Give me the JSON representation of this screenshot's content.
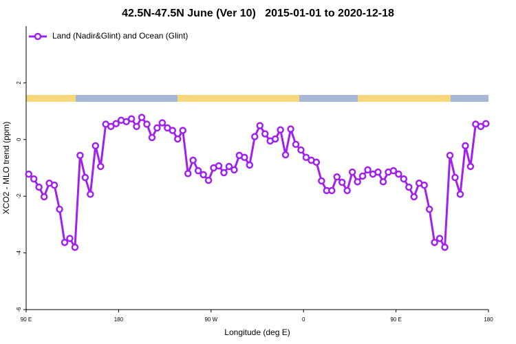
{
  "chart_data": {
    "type": "line",
    "title": "42.5N-47.5N June (Ver 10)   2015-01-01 to 2020-12-18",
    "x_label": "Longitude (deg E)",
    "y_label": "XCO2 - MLO trend (ppm)",
    "legend": "top-left",
    "xlim": [
      90,
      540
    ],
    "xticks": [
      {
        "value": 90,
        "label": "90 E"
      },
      180,
      {
        "value": 270,
        "label": "90 W"
      },
      {
        "value": 360,
        "label": "0"
      },
      {
        "value": 450,
        "label": "90 E"
      },
      {
        "value": 540,
        "label": "180"
      }
    ],
    "ylim": [
      -6,
      4
    ],
    "yticks": [
      -6,
      -4,
      -2,
      0,
      2
    ],
    "x": [
      92.5,
      97.5,
      102.5,
      107.5,
      112.5,
      117.5,
      122.5,
      127.5,
      132.5,
      137.5,
      142.5,
      147.5,
      152.5,
      157.5,
      162.5,
      167.5,
      172.5,
      177.5,
      182.5,
      187.5,
      192.5,
      197.5,
      202.5,
      207.5,
      212.5,
      217.5,
      222.5,
      227.5,
      232.5,
      237.5,
      242.5,
      247.5,
      252.5,
      257.5,
      262.5,
      267.5,
      272.5,
      277.5,
      282.5,
      287.5,
      292.5,
      297.5,
      302.5,
      307.5,
      312.5,
      317.5,
      322.5,
      327.5,
      332.5,
      337.5,
      342.5,
      347.5,
      352.5,
      357.5,
      362.5,
      367.5,
      372.5,
      377.5,
      382.5,
      387.5,
      392.5,
      397.5,
      402.5,
      407.5,
      412.5,
      417.5,
      422.5,
      427.5,
      432.5,
      437.5,
      442.5,
      447.5,
      452.5,
      457.5,
      462.5,
      467.5,
      472.5,
      477.5,
      482.5,
      487.5,
      492.5,
      497.5,
      502.5,
      507.5,
      512.5,
      517.5,
      522.5,
      527.5,
      532.5,
      537.5
    ],
    "series": [
      {
        "name": "Land (Nadir&Glint) and Ocean (Glint)",
        "color": "#a020f0",
        "values": [
          -1.22,
          -1.39,
          -1.68,
          -2.02,
          -1.54,
          -1.61,
          -2.46,
          -3.63,
          -3.49,
          -3.8,
          -0.56,
          -1.34,
          -1.93,
          -0.22,
          -0.95,
          0.54,
          0.46,
          0.56,
          0.68,
          0.63,
          0.73,
          0.46,
          0.78,
          0.54,
          0.07,
          0.41,
          0.59,
          0.41,
          0.32,
          0.02,
          0.32,
          -1.2,
          -0.73,
          -1.1,
          -1.24,
          -1.44,
          -1.0,
          -0.93,
          -1.17,
          -0.95,
          -1.07,
          -0.56,
          -0.63,
          -0.9,
          0.1,
          0.49,
          0.2,
          -0.05,
          0.02,
          0.34,
          -0.54,
          0.37,
          -0.17,
          -0.37,
          -0.63,
          -0.73,
          -0.8,
          -1.46,
          -1.8,
          -1.8,
          -1.32,
          -1.51,
          -1.8,
          -1.15,
          -1.49,
          -1.29,
          -1.07,
          -1.22,
          -1.15,
          -1.49,
          -1.15,
          -1.1,
          -1.22,
          -1.39,
          -1.68,
          -2.02,
          -1.54,
          -1.61,
          -2.46,
          -3.63,
          -3.49,
          -3.8,
          -0.56,
          -1.34,
          -1.93,
          -0.22,
          -0.95,
          0.54,
          0.46,
          0.56
        ]
      }
    ]
  }
}
